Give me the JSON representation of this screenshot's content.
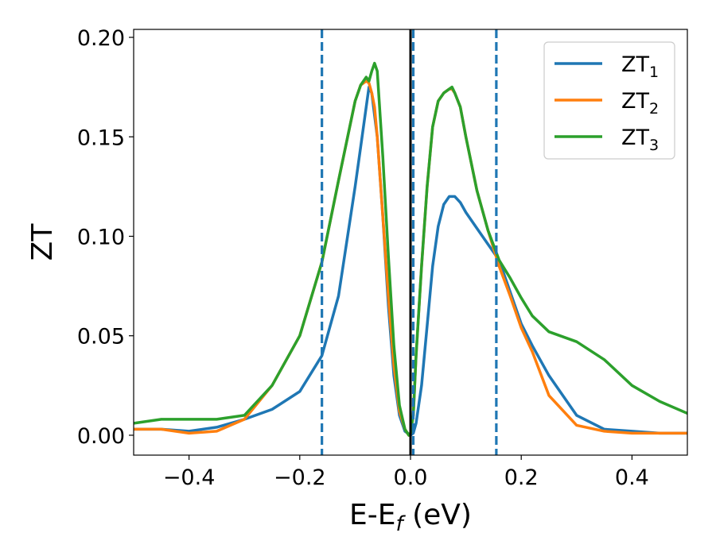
{
  "chart_data": {
    "type": "line",
    "xlabel": "E-E",
    "xlabel_sub": "f",
    "xlabel_unit": " (eV)",
    "ylabel": "ZT",
    "xlim": [
      -0.5,
      0.5
    ],
    "ylim": [
      -0.01,
      0.204
    ],
    "xticks": [
      -0.4,
      -0.2,
      0.0,
      0.2,
      0.4
    ],
    "xtick_labels": [
      "−0.4",
      "−0.2",
      "0.0",
      "0.2",
      "0.4"
    ],
    "yticks": [
      0.0,
      0.05,
      0.1,
      0.15,
      0.2
    ],
    "ytick_labels": [
      "0.00",
      "0.05",
      "0.10",
      "0.15",
      "0.20"
    ],
    "legend_position": "top-right",
    "vlines": [
      {
        "x": -0.16,
        "style": "dashed",
        "color": "#1f77b4"
      },
      {
        "x": 0.0,
        "style": "solid",
        "color": "#000000"
      },
      {
        "x": 0.005,
        "style": "dashed",
        "color": "#1f77b4"
      },
      {
        "x": 0.155,
        "style": "dashed",
        "color": "#1f77b4"
      }
    ],
    "series": [
      {
        "name": "ZT",
        "sub": "1",
        "color": "#1f77b4",
        "x": [
          -0.5,
          -0.45,
          -0.4,
          -0.35,
          -0.3,
          -0.25,
          -0.2,
          -0.16,
          -0.13,
          -0.1,
          -0.09,
          -0.08,
          -0.075,
          -0.07,
          -0.06,
          -0.05,
          -0.04,
          -0.03,
          -0.02,
          -0.01,
          0.0,
          0.005,
          0.01,
          0.02,
          0.03,
          0.04,
          0.05,
          0.06,
          0.07,
          0.08,
          0.09,
          0.1,
          0.12,
          0.14,
          0.16,
          0.18,
          0.2,
          0.22,
          0.25,
          0.3,
          0.35,
          0.4,
          0.45,
          0.5
        ],
        "y": [
          0.003,
          0.003,
          0.002,
          0.004,
          0.008,
          0.013,
          0.022,
          0.04,
          0.07,
          0.125,
          0.145,
          0.165,
          0.175,
          0.172,
          0.15,
          0.11,
          0.065,
          0.03,
          0.01,
          0.002,
          0.0,
          0.001,
          0.006,
          0.025,
          0.055,
          0.085,
          0.105,
          0.116,
          0.12,
          0.12,
          0.117,
          0.112,
          0.104,
          0.096,
          0.088,
          0.072,
          0.056,
          0.045,
          0.03,
          0.01,
          0.003,
          0.002,
          0.001,
          0.001
        ]
      },
      {
        "name": "ZT",
        "sub": "2",
        "color": "#ff7f0e",
        "x": [
          -0.5,
          -0.45,
          -0.4,
          -0.35,
          -0.3,
          -0.25,
          -0.2,
          -0.16,
          -0.13,
          -0.1,
          -0.09,
          -0.08,
          -0.075,
          -0.07,
          -0.065,
          -0.06,
          -0.05,
          -0.04,
          -0.03,
          -0.02,
          -0.01,
          -0.003,
          0.0,
          0.005,
          0.01,
          0.02,
          0.03,
          0.04,
          0.05,
          0.06,
          0.07,
          0.075,
          0.08,
          0.09,
          0.1,
          0.12,
          0.14,
          0.16,
          0.18,
          0.2,
          0.22,
          0.25,
          0.3,
          0.35,
          0.4,
          0.45,
          0.5
        ],
        "y": [
          0.003,
          0.003,
          0.001,
          0.002,
          0.008,
          0.025,
          0.05,
          0.087,
          0.128,
          0.168,
          0.176,
          0.178,
          0.177,
          0.172,
          0.165,
          0.15,
          0.11,
          0.07,
          0.035,
          0.012,
          0.003,
          0.0,
          0.001,
          0.01,
          0.04,
          0.085,
          0.125,
          0.155,
          0.168,
          0.172,
          0.174,
          0.174,
          0.172,
          0.165,
          0.15,
          0.123,
          0.103,
          0.085,
          0.07,
          0.054,
          0.042,
          0.02,
          0.005,
          0.002,
          0.001,
          0.001,
          0.001
        ]
      },
      {
        "name": "ZT",
        "sub": "3",
        "color": "#2ca02c",
        "x": [
          -0.5,
          -0.45,
          -0.4,
          -0.35,
          -0.3,
          -0.25,
          -0.2,
          -0.16,
          -0.13,
          -0.1,
          -0.09,
          -0.08,
          -0.075,
          -0.07,
          -0.065,
          -0.06,
          -0.05,
          -0.04,
          -0.03,
          -0.02,
          -0.01,
          -0.003,
          0.0,
          0.005,
          0.01,
          0.02,
          0.03,
          0.04,
          0.05,
          0.06,
          0.07,
          0.075,
          0.08,
          0.09,
          0.1,
          0.12,
          0.14,
          0.16,
          0.18,
          0.2,
          0.22,
          0.25,
          0.3,
          0.35,
          0.4,
          0.45,
          0.5
        ],
        "y": [
          0.006,
          0.008,
          0.008,
          0.008,
          0.01,
          0.025,
          0.05,
          0.087,
          0.128,
          0.168,
          0.176,
          0.18,
          0.178,
          0.183,
          0.187,
          0.183,
          0.14,
          0.09,
          0.045,
          0.015,
          0.003,
          0.0,
          0.001,
          0.01,
          0.04,
          0.085,
          0.125,
          0.155,
          0.168,
          0.172,
          0.174,
          0.175,
          0.172,
          0.165,
          0.15,
          0.123,
          0.103,
          0.088,
          0.079,
          0.069,
          0.06,
          0.052,
          0.047,
          0.038,
          0.025,
          0.017,
          0.011
        ]
      }
    ]
  }
}
